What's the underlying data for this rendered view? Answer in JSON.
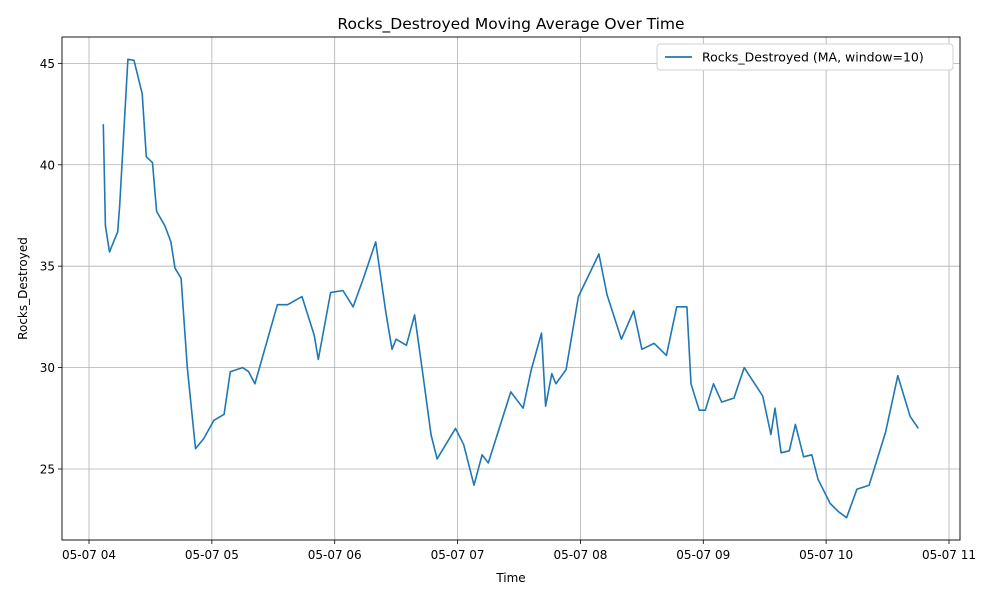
{
  "chart_data": {
    "type": "line",
    "title": "Rocks_Destroyed Moving Average Over Time",
    "xlabel": "Time",
    "ylabel": "Rocks_Destroyed",
    "xlim": [
      "05-07 04:00",
      "05-07 11:00"
    ],
    "ylim": [
      21.5,
      46.3
    ],
    "x_ticks": [
      {
        "time": "05-07 04:00",
        "label": "05-07 04"
      },
      {
        "time": "05-07 05:00",
        "label": "05-07 05"
      },
      {
        "time": "05-07 06:00",
        "label": "05-07 06"
      },
      {
        "time": "05-07 07:00",
        "label": "05-07 07"
      },
      {
        "time": "05-07 08:00",
        "label": "05-07 08"
      },
      {
        "time": "05-07 09:00",
        "label": "05-07 09"
      },
      {
        "time": "05-07 10:00",
        "label": "05-07 10"
      },
      {
        "time": "05-07 11:00",
        "label": "05-07 11"
      }
    ],
    "y_ticks": [
      25,
      30,
      35,
      40,
      45
    ],
    "grid": true,
    "legend_position": "top-right",
    "series": [
      {
        "name": "Rocks_Destroyed (MA, window=10)",
        "color": "#1f77b4",
        "points": [
          [
            "05-07 04:07",
            42.0
          ],
          [
            "05-07 04:08",
            37.0
          ],
          [
            "05-07 04:10",
            35.7
          ],
          [
            "05-07 04:14",
            36.7
          ],
          [
            "05-07 04:15",
            38.0
          ],
          [
            "05-07 04:19",
            45.2
          ],
          [
            "05-07 04:22",
            45.15
          ],
          [
            "05-07 04:26",
            43.5
          ],
          [
            "05-07 04:28",
            40.4
          ],
          [
            "05-07 04:31",
            40.1
          ],
          [
            "05-07 04:33",
            37.7
          ],
          [
            "05-07 04:37",
            37.0
          ],
          [
            "05-07 04:40",
            36.2
          ],
          [
            "05-07 04:42",
            34.9
          ],
          [
            "05-07 04:45",
            34.4
          ],
          [
            "05-07 04:48",
            30.0
          ],
          [
            "05-07 04:52",
            26.0
          ],
          [
            "05-07 04:56",
            26.5
          ],
          [
            "05-07 05:01",
            27.4
          ],
          [
            "05-07 05:06",
            27.7
          ],
          [
            "05-07 05:09",
            29.8
          ],
          [
            "05-07 05:15",
            30.0
          ],
          [
            "05-07 05:18",
            29.8
          ],
          [
            "05-07 05:21",
            29.2
          ],
          [
            "05-07 05:32",
            33.1
          ],
          [
            "05-07 05:37",
            33.1
          ],
          [
            "05-07 05:44",
            33.5
          ],
          [
            "05-07 05:50",
            31.6
          ],
          [
            "05-07 05:52",
            30.4
          ],
          [
            "05-07 05:58",
            33.7
          ],
          [
            "05-07 06:04",
            33.8
          ],
          [
            "05-07 06:09",
            33.0
          ],
          [
            "05-07 06:14",
            34.4
          ],
          [
            "05-07 06:20",
            36.2
          ],
          [
            "05-07 06:25",
            32.7
          ],
          [
            "05-07 06:28",
            30.9
          ],
          [
            "05-07 06:30",
            31.4
          ],
          [
            "05-07 06:35",
            31.1
          ],
          [
            "05-07 06:39",
            32.6
          ],
          [
            "05-07 06:43",
            29.7
          ],
          [
            "05-07 06:47",
            26.7
          ],
          [
            "05-07 06:50",
            25.5
          ],
          [
            "05-07 06:59",
            27.0
          ],
          [
            "05-07 07:03",
            26.2
          ],
          [
            "05-07 07:08",
            24.2
          ],
          [
            "05-07 07:12",
            25.7
          ],
          [
            "05-07 07:15",
            25.3
          ],
          [
            "05-07 07:26",
            28.8
          ],
          [
            "05-07 07:32",
            28.0
          ],
          [
            "05-07 07:36",
            29.9
          ],
          [
            "05-07 07:41",
            31.7
          ],
          [
            "05-07 07:43",
            28.1
          ],
          [
            "05-07 07:46",
            29.7
          ],
          [
            "05-07 07:48",
            29.2
          ],
          [
            "05-07 07:53",
            29.9
          ],
          [
            "05-07 07:59",
            33.5
          ],
          [
            "05-07 08:09",
            35.6
          ],
          [
            "05-07 08:13",
            33.6
          ],
          [
            "05-07 08:20",
            31.4
          ],
          [
            "05-07 08:26",
            32.8
          ],
          [
            "05-07 08:30",
            30.9
          ],
          [
            "05-07 08:36",
            31.2
          ],
          [
            "05-07 08:42",
            30.6
          ],
          [
            "05-07 08:47",
            33.0
          ],
          [
            "05-07 08:52",
            33.0
          ],
          [
            "05-07 08:54",
            29.2
          ],
          [
            "05-07 08:58",
            27.9
          ],
          [
            "05-07 09:01",
            27.9
          ],
          [
            "05-07 09:05",
            29.2
          ],
          [
            "05-07 09:09",
            28.3
          ],
          [
            "05-07 09:15",
            28.5
          ],
          [
            "05-07 09:20",
            30.0
          ],
          [
            "05-07 09:29",
            28.6
          ],
          [
            "05-07 09:33",
            26.7
          ],
          [
            "05-07 09:35",
            28.0
          ],
          [
            "05-07 09:38",
            25.8
          ],
          [
            "05-07 09:42",
            25.9
          ],
          [
            "05-07 09:45",
            27.2
          ],
          [
            "05-07 09:49",
            25.6
          ],
          [
            "05-07 09:53",
            25.7
          ],
          [
            "05-07 09:56",
            24.5
          ],
          [
            "05-07 10:02",
            23.3
          ],
          [
            "05-07 10:06",
            22.9
          ],
          [
            "05-07 10:10",
            22.6
          ],
          [
            "05-07 10:15",
            24.0
          ],
          [
            "05-07 10:21",
            24.2
          ],
          [
            "05-07 10:29",
            26.8
          ],
          [
            "05-07 10:35",
            29.6
          ],
          [
            "05-07 10:41",
            27.6
          ],
          [
            "05-07 10:45",
            27.0
          ]
        ]
      }
    ]
  }
}
